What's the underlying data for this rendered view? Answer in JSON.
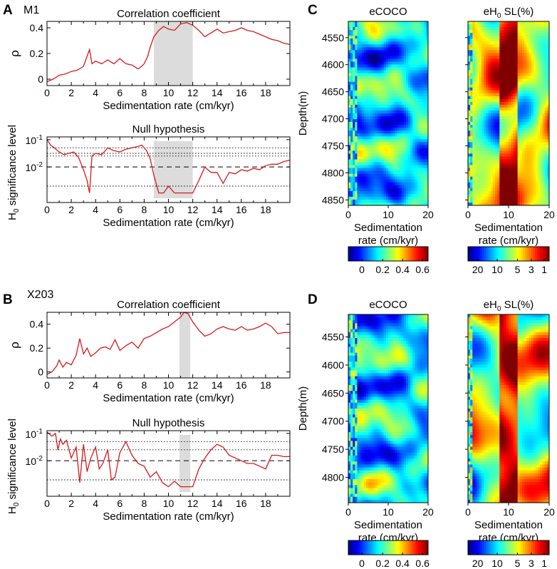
{
  "figure": {
    "panel_letters": [
      "A",
      "B",
      "C",
      "D"
    ],
    "wells": [
      "M1",
      "X203"
    ],
    "colors": {
      "curve": "#d7191c",
      "shade": "#dcdcdc",
      "axis": "#000000"
    },
    "colormap_name": "jet",
    "coco_title": "eCOCO",
    "h0_title_prefix": "eH",
    "h0_title_sub": "0",
    "h0_title_suffix": " SL(%)",
    "coco_colorbar_ticks": [
      "0",
      "0.2",
      "0.4",
      "0.6"
    ],
    "h0_colorbar_ticks": [
      "20",
      "10",
      "5",
      "3",
      "1"
    ],
    "heatmap_xticks": [
      "0",
      "10",
      "20"
    ],
    "heatmap_xlabel_line1": "Sedimentation",
    "heatmap_xlabel_line2": "rate (cm/kyr)",
    "heatmap_ylabel": "Depth(m)",
    "depth_ticks_C": [
      "4550",
      "4600",
      "4650",
      "4700",
      "4750",
      "4800",
      "4850"
    ],
    "depth_ticks_D": [
      "4550",
      "4600",
      "4650",
      "4700",
      "4750",
      "4800"
    ]
  },
  "chart_data": [
    {
      "id": "A-corr",
      "type": "line",
      "title": "Correlation coefficient",
      "xlabel": "Sedimentation rate (cm/kyr)",
      "ylabel": "ρ",
      "xlim": [
        0,
        20
      ],
      "ylim": [
        -0.05,
        0.45
      ],
      "xticks": [
        "0",
        "2",
        "4",
        "6",
        "8",
        "10",
        "12",
        "14",
        "16",
        "18"
      ],
      "yticks": [
        "0",
        "0.2",
        "0.4"
      ],
      "shaded_range": [
        8.8,
        12
      ],
      "x": [
        0,
        0.5,
        1,
        1.5,
        2,
        2.5,
        3,
        3.3,
        3.5,
        3.7,
        4,
        4.5,
        5,
        5.5,
        6,
        6.5,
        7,
        7.5,
        7.8,
        8,
        8.3,
        8.5,
        8.8,
        9.2,
        9.6,
        10,
        10.5,
        11,
        11.5,
        12,
        12.5,
        13,
        13.5,
        14,
        14.5,
        15,
        15.5,
        16,
        16.5,
        17,
        17.5,
        18,
        18.5,
        19,
        19.5,
        20
      ],
      "y": [
        -0.02,
        0.0,
        0.03,
        0.04,
        0.06,
        0.07,
        0.1,
        0.18,
        0.23,
        0.12,
        0.14,
        0.12,
        0.15,
        0.12,
        0.16,
        0.12,
        0.11,
        0.08,
        0.1,
        0.12,
        0.18,
        0.25,
        0.33,
        0.38,
        0.41,
        0.39,
        0.38,
        0.43,
        0.44,
        0.42,
        0.38,
        0.33,
        0.36,
        0.39,
        0.36,
        0.37,
        0.38,
        0.4,
        0.38,
        0.37,
        0.35,
        0.33,
        0.31,
        0.3,
        0.28,
        0.27
      ]
    },
    {
      "id": "A-null",
      "type": "line",
      "title": "Null hypothesis",
      "xlabel": "Sedimentation rate (cm/kyr)",
      "ylabel": "significance level",
      "ylabel_prefix": "H",
      "ylabel_sub": "0",
      "yscale": "log-reversed",
      "ylim_log10": [
        -3.3,
        -0.9
      ],
      "xlim": [
        0,
        20
      ],
      "xticks": [
        "0",
        "2",
        "4",
        "6",
        "8",
        "10",
        "12",
        "14",
        "16",
        "18"
      ],
      "ytick_labels": [
        {
          "base": "10",
          "exp": "-2",
          "log": -2
        },
        {
          "base": "10",
          "exp": "-1",
          "log": -1
        }
      ],
      "dotted_levels_log10": [
        -2.7,
        -1.6,
        -1.5,
        -1.3
      ],
      "dashed_level_log10": -2,
      "shaded_range": [
        8.8,
        12
      ],
      "x": [
        0,
        0.3,
        0.6,
        1,
        1.4,
        1.8,
        2.2,
        2.6,
        3,
        3.3,
        3.5,
        3.7,
        4,
        4.5,
        5,
        5.5,
        6,
        6.5,
        7,
        7.5,
        7.8,
        8.2,
        8.5,
        8.8,
        9.2,
        9.6,
        10,
        10.5,
        11,
        11.5,
        12,
        12.5,
        13,
        13.5,
        14,
        14.5,
        15,
        15.5,
        16,
        16.5,
        17,
        17.5,
        18,
        18.5,
        19,
        19.5,
        20
      ],
      "y": [
        -1.0,
        -1.2,
        -1.3,
        -1.45,
        -1.55,
        -1.5,
        -1.45,
        -1.65,
        -2.1,
        -2.5,
        -2.95,
        -1.6,
        -1.5,
        -1.55,
        -1.3,
        -1.4,
        -1.45,
        -1.35,
        -1.3,
        -1.25,
        -1.2,
        -1.4,
        -1.7,
        -2.3,
        -2.95,
        -2.95,
        -2.7,
        -2.95,
        -2.95,
        -2.95,
        -2.95,
        -2.5,
        -2.0,
        -2.2,
        -2.2,
        -2.6,
        -2.2,
        -2.25,
        -2.1,
        -2.15,
        -2.05,
        -2.1,
        -1.95,
        -1.9,
        -1.9,
        -1.8,
        -1.75
      ]
    },
    {
      "id": "B-corr",
      "type": "line",
      "title": "Correlation coefficient",
      "xlabel": "Sedimentation rate (cm/kyr)",
      "ylabel": "ρ",
      "xlim": [
        0,
        20
      ],
      "ylim": [
        -0.05,
        0.5
      ],
      "xticks": [
        "0",
        "2",
        "4",
        "6",
        "8",
        "10",
        "12",
        "14",
        "16",
        "18"
      ],
      "yticks": [
        "0",
        "0.2",
        "0.4"
      ],
      "shaded_range": [
        10.9,
        11.8
      ],
      "x": [
        0,
        0.4,
        0.8,
        1,
        1.3,
        1.6,
        2,
        2.4,
        2.7,
        3,
        3.3,
        3.6,
        4,
        4.4,
        4.8,
        5.2,
        5.6,
        6,
        6.5,
        7,
        7.5,
        8,
        8.5,
        9,
        9.5,
        10,
        10.5,
        11,
        11.3,
        11.6,
        12,
        12.5,
        13,
        13.5,
        14,
        14.5,
        15,
        15.5,
        16,
        16.5,
        17,
        17.5,
        18,
        18.5,
        19,
        19.5,
        20
      ],
      "y": [
        -0.02,
        0.0,
        0.05,
        0.1,
        0.04,
        0.08,
        0.06,
        0.14,
        0.28,
        0.15,
        0.2,
        0.13,
        0.16,
        0.2,
        0.21,
        0.19,
        0.27,
        0.18,
        0.22,
        0.25,
        0.2,
        0.28,
        0.3,
        0.33,
        0.36,
        0.38,
        0.42,
        0.46,
        0.5,
        0.49,
        0.42,
        0.35,
        0.3,
        0.32,
        0.36,
        0.38,
        0.36,
        0.35,
        0.38,
        0.35,
        0.36,
        0.38,
        0.41,
        0.38,
        0.32,
        0.33,
        0.33
      ]
    },
    {
      "id": "B-null",
      "type": "line",
      "title": "Null hypothesis",
      "xlabel": "Sedimentation rate (cm/kyr)",
      "ylabel": "significance level",
      "ylabel_prefix": "H",
      "ylabel_sub": "0",
      "yscale": "log-reversed",
      "ylim_log10": [
        -3.3,
        -0.9
      ],
      "xlim": [
        0,
        20
      ],
      "xticks": [
        "0",
        "2",
        "4",
        "6",
        "8",
        "10",
        "12",
        "14",
        "16",
        "18"
      ],
      "ytick_labels": [
        {
          "base": "10",
          "exp": "-2",
          "log": -2
        },
        {
          "base": "10",
          "exp": "-1",
          "log": -1
        }
      ],
      "dotted_levels_log10": [
        -2.7,
        -1.6,
        -1.3
      ],
      "dashed_level_log10": -2,
      "shaded_range": [
        10.9,
        11.8
      ],
      "x": [
        0,
        0.4,
        0.7,
        0.9,
        1.1,
        1.3,
        1.6,
        2,
        2.4,
        2.7,
        3,
        3.3,
        3.6,
        4,
        4.3,
        4.6,
        5,
        5.3,
        5.6,
        6,
        6.5,
        7,
        7.5,
        8,
        8.5,
        9,
        9.5,
        10,
        10.5,
        11,
        11.5,
        12,
        12.5,
        13,
        13.5,
        14,
        14.5,
        15,
        15.5,
        16,
        16.5,
        17,
        17.5,
        18,
        18.5,
        19,
        19.5,
        20
      ],
      "y": [
        -0.95,
        -1.1,
        -1.0,
        -1.6,
        -1.2,
        -1.4,
        -1.25,
        -1.9,
        -1.5,
        -2.8,
        -1.4,
        -2.4,
        -1.9,
        -1.5,
        -2.3,
        -2.1,
        -1.6,
        -2.7,
        -2.6,
        -1.7,
        -1.3,
        -1.8,
        -2.1,
        -2.2,
        -2.6,
        -2.4,
        -2.8,
        -2.95,
        -2.75,
        -2.95,
        -2.95,
        -2.95,
        -2.3,
        -1.9,
        -1.6,
        -1.4,
        -1.5,
        -1.8,
        -1.9,
        -2.0,
        -2.1,
        -2.1,
        -2.2,
        -2.3,
        -1.8,
        -1.8,
        -1.85,
        -1.85
      ]
    },
    {
      "id": "C-coco",
      "type": "heatmap",
      "title": "eCOCO",
      "xlabel": "Sedimentation rate (cm/kyr)",
      "ylabel": "Depth(m)",
      "xlim": [
        0,
        20
      ],
      "ylim": [
        4520,
        4860
      ],
      "colorbar_range": [
        -0.1,
        0.65
      ],
      "colorbar_ticks": [
        0,
        0.2,
        0.4,
        0.6
      ]
    },
    {
      "id": "C-h0",
      "type": "heatmap",
      "title": "eH0 SL(%)",
      "xlabel": "Sedimentation rate (cm/kyr)",
      "ylabel": "",
      "xlim": [
        0,
        20
      ],
      "ylim": [
        4520,
        4860
      ],
      "colorbar_scale": "log-reversed",
      "colorbar_ticks": [
        20,
        10,
        5,
        3,
        1
      ]
    },
    {
      "id": "D-coco",
      "type": "heatmap",
      "title": "eCOCO",
      "xlabel": "Sedimentation rate (cm/kyr)",
      "ylabel": "Depth(m)",
      "xlim": [
        0,
        20
      ],
      "ylim": [
        4510,
        4845
      ],
      "colorbar_range": [
        -0.1,
        0.65
      ],
      "colorbar_ticks": [
        0,
        0.2,
        0.4,
        0.6
      ]
    },
    {
      "id": "D-h0",
      "type": "heatmap",
      "title": "eH0 SL(%)",
      "xlabel": "Sedimentation rate (cm/kyr)",
      "ylabel": "",
      "xlim": [
        0,
        20
      ],
      "ylim": [
        4510,
        4845
      ],
      "colorbar_scale": "log-reversed",
      "colorbar_ticks": [
        20,
        10,
        5,
        3,
        1
      ]
    }
  ]
}
